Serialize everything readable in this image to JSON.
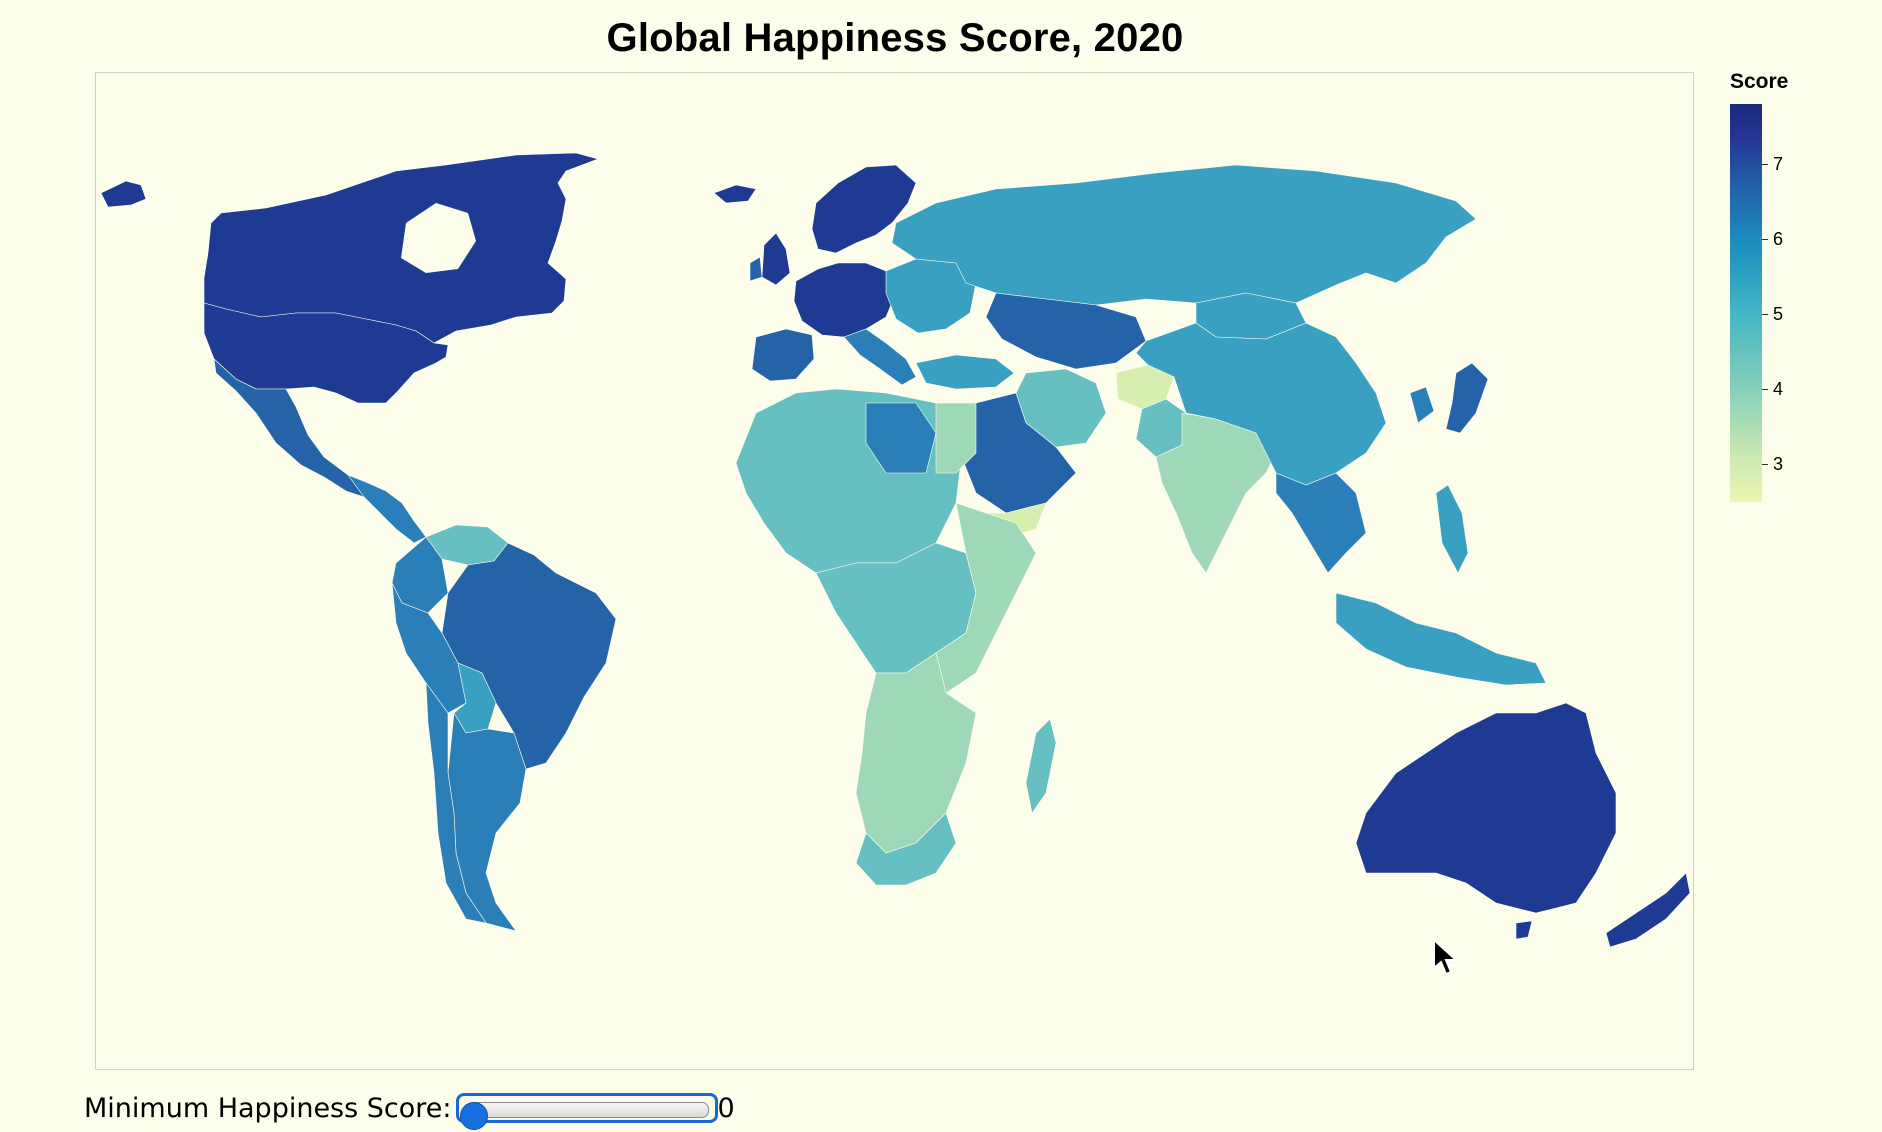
{
  "title": "Global Happiness Score, 2020",
  "legend": {
    "title": "Score",
    "domain": [
      2.5,
      7.8
    ],
    "ticks": [
      "7",
      "6",
      "5",
      "4",
      "3"
    ],
    "tick_values": [
      7,
      6,
      5,
      4,
      3
    ],
    "color_scale": "yellow-green-blue",
    "color_low": "#ebf6b0",
    "color_high": "#1a2a7c"
  },
  "control": {
    "label": "Minimum Happiness Score:",
    "value": "0",
    "min": 0,
    "max": 8,
    "current": 0
  },
  "map": {
    "projection": "equirectangular",
    "colors": {
      "ocean": "#fdfdec",
      "very_high": "#1f3a93",
      "high": "#2563a8",
      "mid_high": "#2b7fb8",
      "mid": "#3aa0c2",
      "mid_low": "#66bfc0",
      "low": "#9fd8b8",
      "very_low": "#d6eeb0"
    }
  }
}
